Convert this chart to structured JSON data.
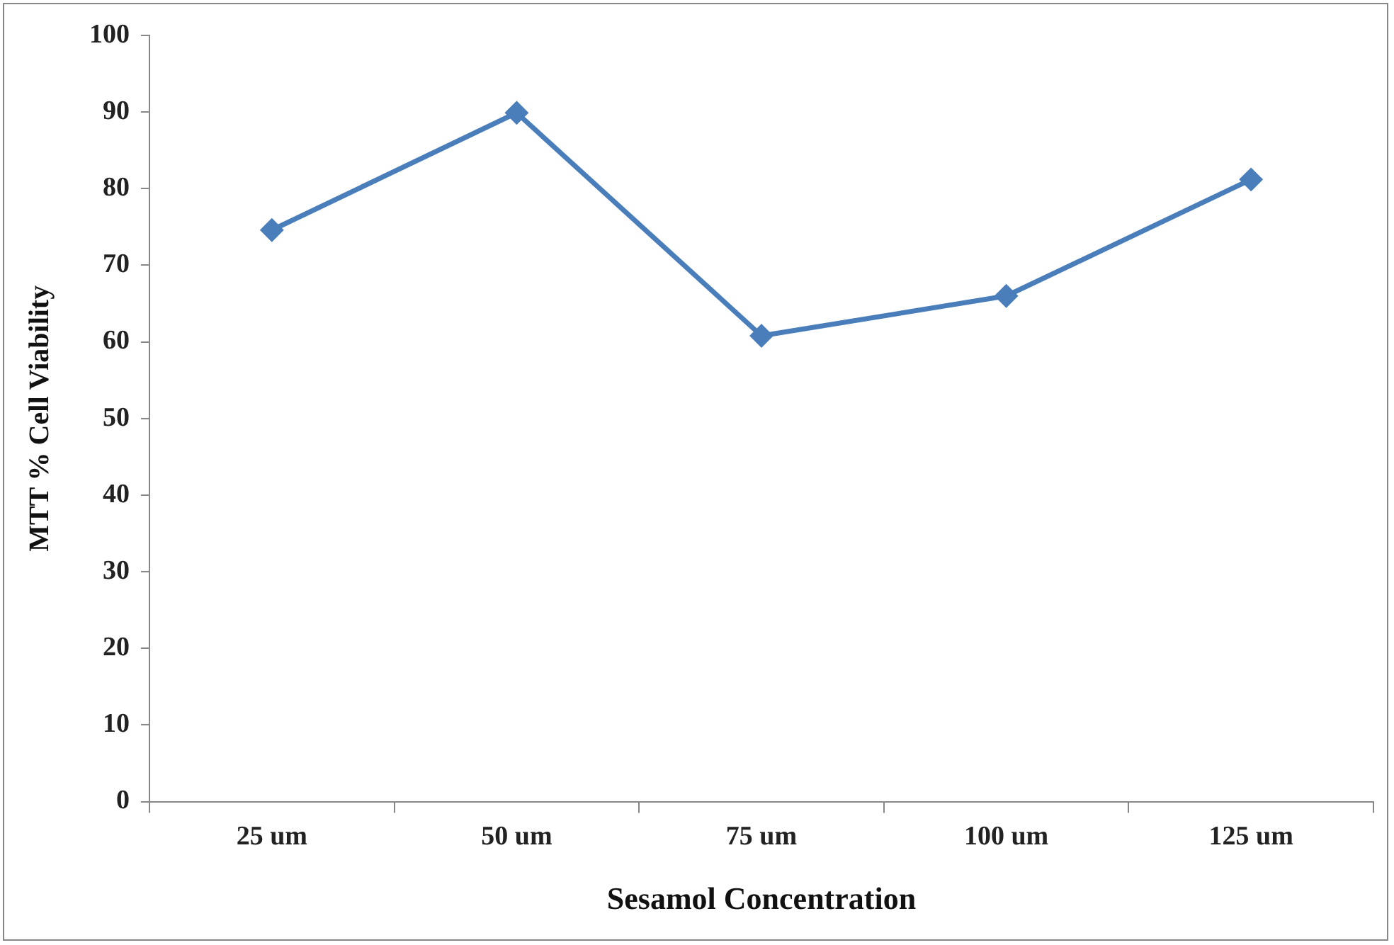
{
  "chart_data": {
    "type": "line",
    "xlabel": "Sesamol Concentration",
    "ylabel": "MTT % Cell Viability",
    "categories": [
      "25 um",
      "50 um",
      "75 um",
      "100 um",
      "125 um"
    ],
    "series": [
      {
        "color": "#4a7ebb",
        "values": [
          74.6,
          89.9,
          60.8,
          66.0,
          81.2
        ]
      }
    ],
    "ylim": [
      0,
      100
    ],
    "yticks": [
      0,
      10,
      20,
      30,
      40,
      50,
      60,
      70,
      80,
      90,
      100
    ],
    "grid": false,
    "legend": false,
    "marker": "diamond",
    "line_style": "solid"
  }
}
